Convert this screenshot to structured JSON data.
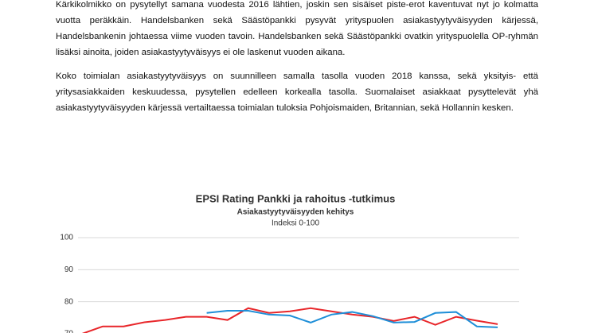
{
  "paragraphs": [
    "Kärkikolmikko on pysytellyt samana vuodesta 2016 lähtien, joskin sen sisäiset piste-erot  kaventuvat nyt jo kolmatta vuotta peräkkäin. Handelsbanken sekä Säästöpankki pysyvät yrityspuolen asiakastyytyväisyyden kärjessä, Handelsbankenin johtaessa viime vuoden tavoin. Handelsbanken sekä Säästöpankki ovatkin yrityspuolella OP-ryhmän lisäksi ainoita, joiden asiakastyytyväisyys ei ole laskenut vuoden aikana.",
    "Koko toimialan asiakastyytyväisyys on suunnilleen samalla tasolla vuoden 2018 kanssa, sekä yksityis- että yritysasiakkaiden keskuudessa, pysytellen edelleen korkealla tasolla. Suomalaiset asiakkaat pysyttelevät yhä asiakastyytyväisyyden kärjessä vertailtaessa toimialan tuloksia Pohjoismaiden, Britannian, sekä Hollannin kesken."
  ],
  "chart_data": {
    "type": "line",
    "title": "EPSI Rating Pankki ja rahoitus -tutkimus",
    "subtitle": "Asiakastyytyväisyyden kehitys",
    "note": "Indeksi 0-100",
    "categories": [
      null,
      null,
      null,
      null,
      null,
      null,
      null,
      null,
      null,
      null,
      null,
      null,
      null,
      null,
      null,
      null,
      null,
      null,
      null,
      null,
      null
    ],
    "series": [
      {
        "color": "#e8262a",
        "values": [
          70,
          72.3,
          72.3,
          73.6,
          74.3,
          75.3,
          75.3,
          74.3,
          78,
          76.5,
          77,
          78,
          77,
          76,
          75.3,
          74,
          75.3,
          72.8,
          75.3,
          74.1,
          73
        ]
      },
      {
        "color": "#1f8fd8",
        "values": [
          null,
          null,
          null,
          null,
          null,
          null,
          76.5,
          77.2,
          77.2,
          76,
          75.7,
          73.5,
          76,
          76.8,
          75.5,
          73.5,
          73.7,
          76.5,
          76.8,
          72.3,
          72
        ]
      }
    ],
    "ylim": [
      70,
      100
    ],
    "yticks": [
      70,
      80,
      90,
      100
    ],
    "grid": true
  }
}
